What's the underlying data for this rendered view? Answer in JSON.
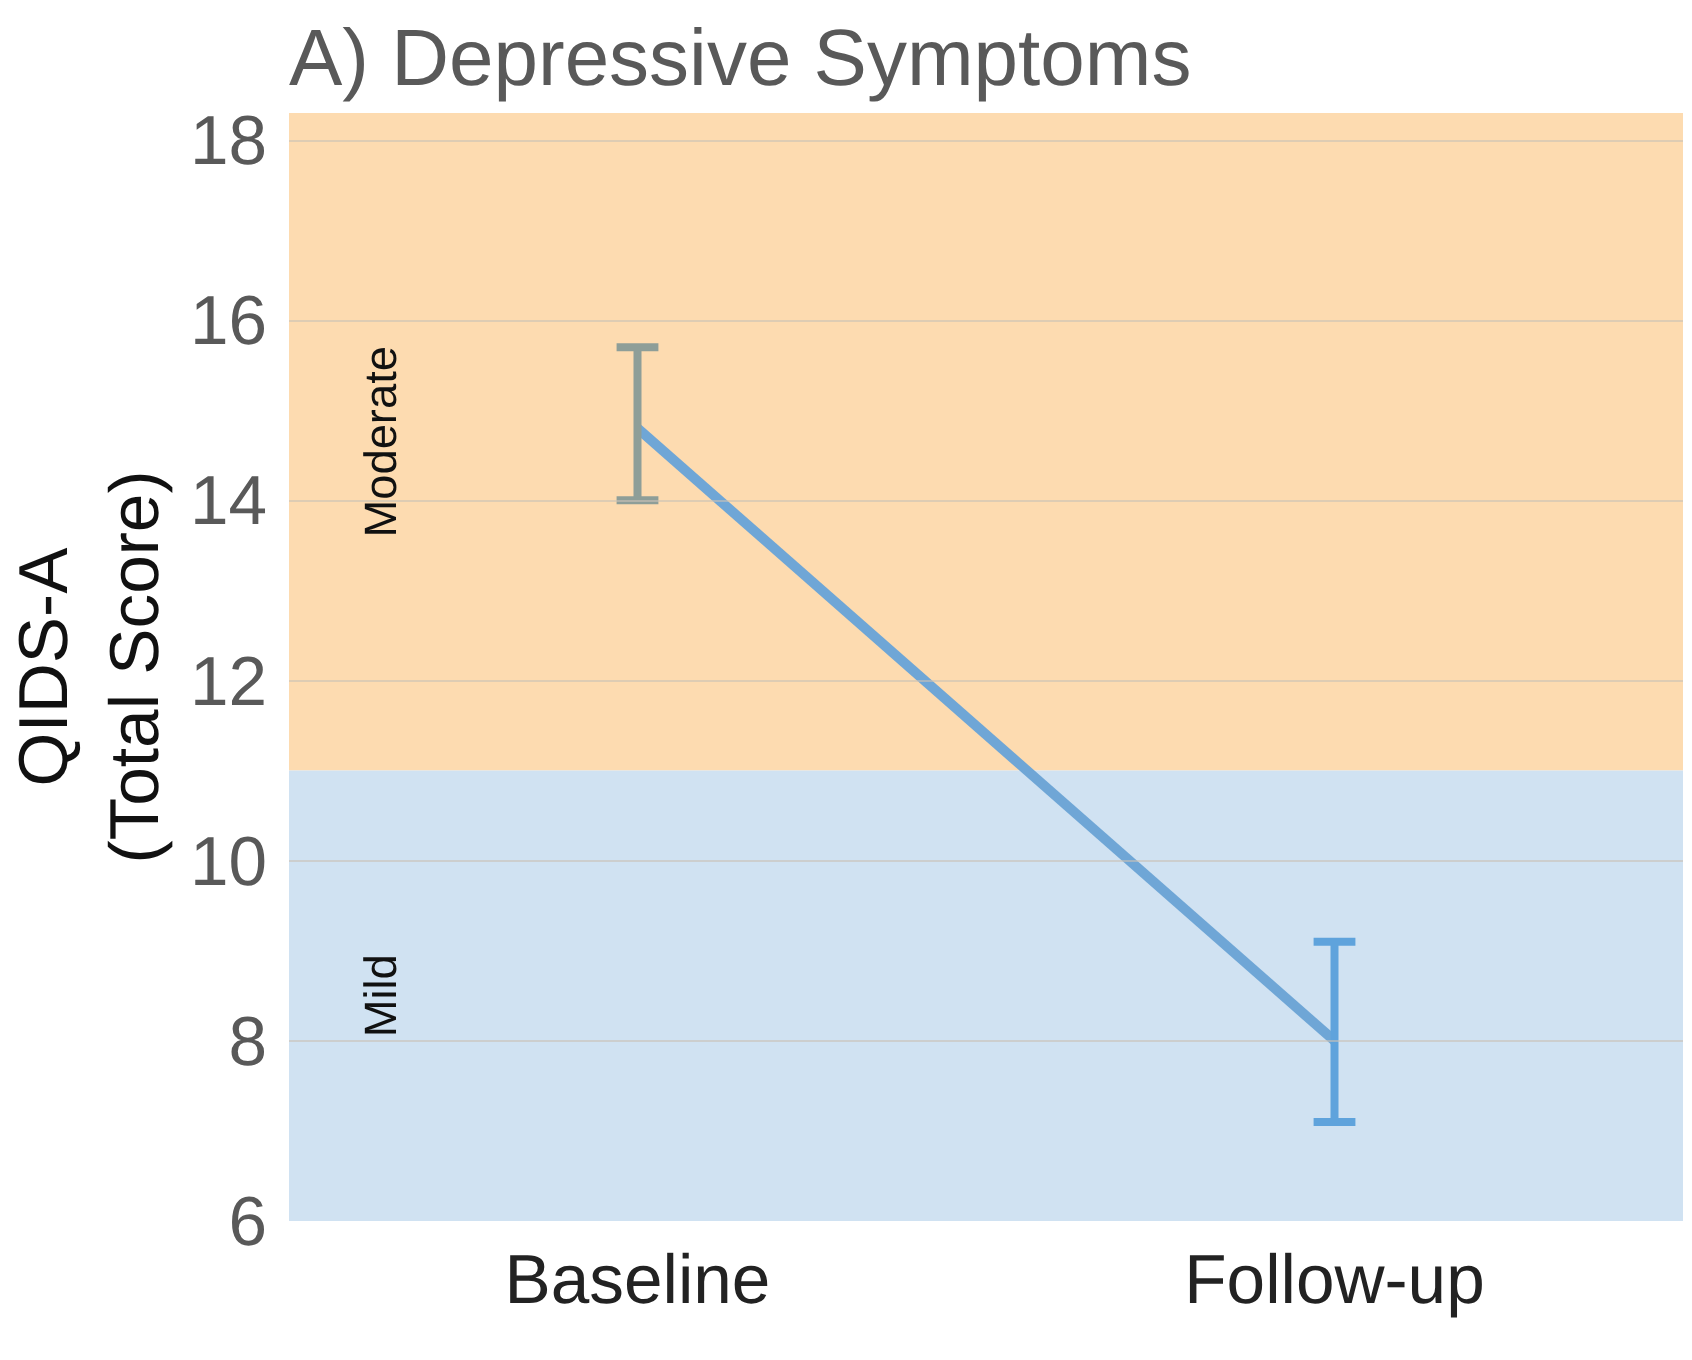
{
  "chart_data": {
    "type": "line",
    "title": "A) Depressive Symptoms",
    "ylabel": "QIDS-A\n(Total Score)",
    "categories": [
      "Baseline",
      "Follow-up"
    ],
    "series": [
      {
        "color": "#6fa6d6",
        "colors": [
          "#8e9e98",
          "#5fa3dc"
        ],
        "values": [
          14.8,
          8.0
        ],
        "errors": [
          [
            14.0,
            15.7
          ],
          [
            7.1,
            9.1
          ]
        ]
      }
    ],
    "ylim": [
      6,
      18.3
    ],
    "yticks": [
      6,
      8,
      10,
      12,
      14,
      16,
      18
    ],
    "grid": "y",
    "marker": "none",
    "bands": [
      {
        "axis": "y",
        "from": 11,
        "to": 18.3,
        "label": "Moderate",
        "color": "#fddbb0"
      },
      {
        "axis": "y",
        "from": 6,
        "to": 11,
        "label": "Mild",
        "color": "#d0e2f2"
      }
    ]
  }
}
